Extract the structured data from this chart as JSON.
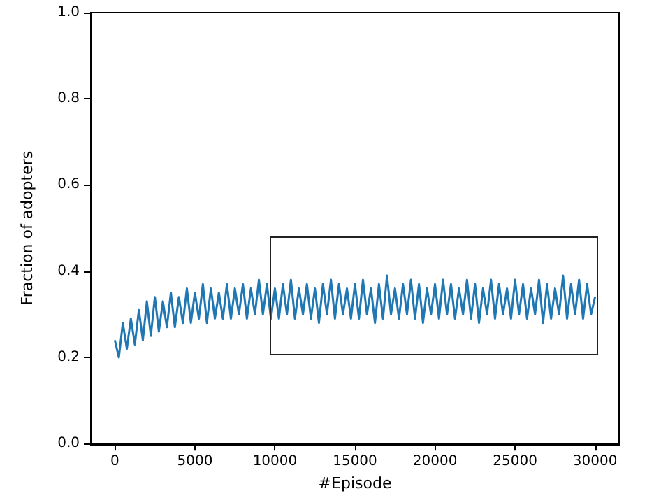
{
  "chart_data": {
    "type": "line",
    "xlabel": "#Episode",
    "ylabel": "Fraction of adopters",
    "x": [
      0,
      250,
      500,
      750,
      1000,
      1250,
      1500,
      1750,
      2000,
      2250,
      2500,
      2750,
      3000,
      3250,
      3500,
      3750,
      4000,
      4250,
      4500,
      4750,
      5000,
      5250,
      5500,
      5750,
      6000,
      6250,
      6500,
      6750,
      7000,
      7250,
      7500,
      7750,
      8000,
      8250,
      8500,
      8750,
      9000,
      9250,
      9500,
      9750,
      10000,
      10250,
      10500,
      10750,
      11000,
      11250,
      11500,
      11750,
      12000,
      12250,
      12500,
      12750,
      13000,
      13250,
      13500,
      13750,
      14000,
      14250,
      14500,
      14750,
      15000,
      15250,
      15500,
      15750,
      16000,
      16250,
      16500,
      16750,
      17000,
      17250,
      17500,
      17750,
      18000,
      18250,
      18500,
      18750,
      19000,
      19250,
      19500,
      19750,
      20000,
      20250,
      20500,
      20750,
      21000,
      21250,
      21500,
      21750,
      22000,
      22250,
      22500,
      22750,
      23000,
      23250,
      23500,
      23750,
      24000,
      24250,
      24500,
      24750,
      25000,
      25250,
      25500,
      25750,
      26000,
      26250,
      26500,
      26750,
      27000,
      27250,
      27500,
      27750,
      28000,
      28250,
      28500,
      28750,
      29000,
      29250,
      29500,
      29750,
      30000
    ],
    "series": [
      {
        "color": "#1f77b4",
        "values": [
          0.24,
          0.2,
          0.28,
          0.22,
          0.29,
          0.23,
          0.31,
          0.24,
          0.33,
          0.25,
          0.34,
          0.26,
          0.33,
          0.27,
          0.35,
          0.27,
          0.34,
          0.28,
          0.36,
          0.28,
          0.35,
          0.29,
          0.37,
          0.28,
          0.36,
          0.29,
          0.35,
          0.29,
          0.37,
          0.29,
          0.36,
          0.3,
          0.37,
          0.29,
          0.36,
          0.3,
          0.38,
          0.3,
          0.37,
          0.29,
          0.36,
          0.29,
          0.37,
          0.3,
          0.38,
          0.29,
          0.36,
          0.3,
          0.37,
          0.29,
          0.36,
          0.28,
          0.37,
          0.3,
          0.38,
          0.29,
          0.37,
          0.3,
          0.36,
          0.29,
          0.37,
          0.29,
          0.38,
          0.3,
          0.36,
          0.28,
          0.37,
          0.29,
          0.39,
          0.3,
          0.36,
          0.29,
          0.37,
          0.3,
          0.38,
          0.29,
          0.37,
          0.28,
          0.36,
          0.3,
          0.37,
          0.29,
          0.38,
          0.3,
          0.37,
          0.29,
          0.36,
          0.3,
          0.38,
          0.29,
          0.37,
          0.28,
          0.36,
          0.3,
          0.38,
          0.29,
          0.37,
          0.3,
          0.36,
          0.29,
          0.38,
          0.3,
          0.37,
          0.29,
          0.36,
          0.3,
          0.38,
          0.28,
          0.37,
          0.29,
          0.36,
          0.3,
          0.39,
          0.29,
          0.37,
          0.3,
          0.38,
          0.29,
          0.37,
          0.3,
          0.34
        ]
      }
    ],
    "xlim": [
      -1500,
      31500
    ],
    "xticks": [
      0,
      5000,
      10000,
      15000,
      20000,
      25000,
      30000
    ],
    "ylim": [
      0,
      1
    ],
    "yticks": [
      {
        "value": 0,
        "label": "0.0"
      },
      0.2,
      0.4,
      0.6,
      0.8,
      {
        "value": 1,
        "label": "1.0"
      }
    ],
    "grid": false,
    "marker": "none",
    "line_style": "solid"
  }
}
